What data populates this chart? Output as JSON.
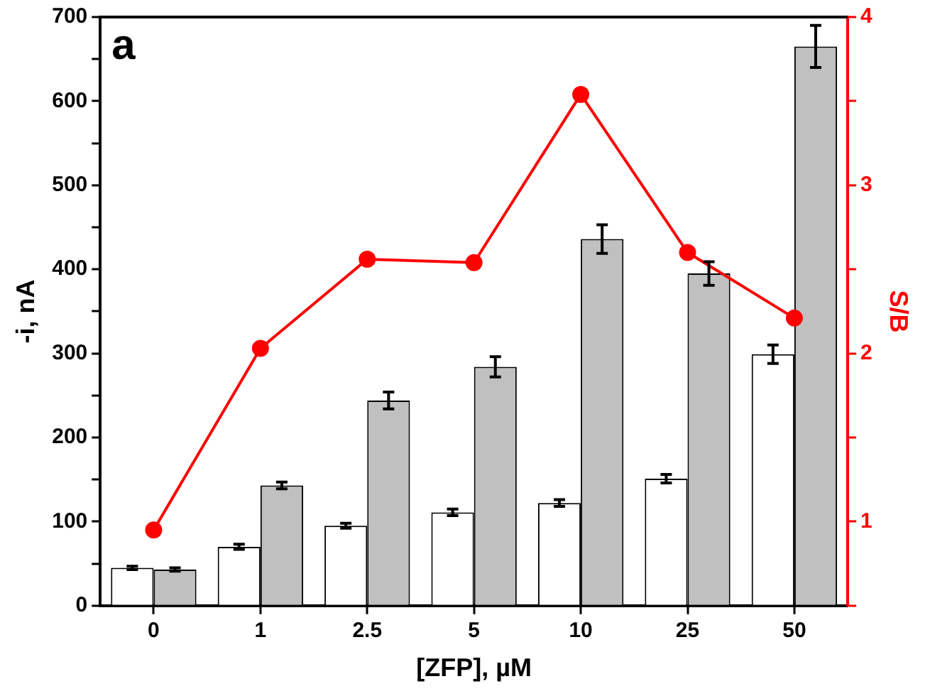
{
  "chart_data": {
    "type": "bar",
    "annotations": [
      "a"
    ],
    "xlabel": "[ZFP], µM",
    "ylabel": "-i, nA",
    "y2label": "S/B",
    "categories": [
      "0",
      "1",
      "2.5",
      "5",
      "10",
      "25",
      "50"
    ],
    "series": [
      {
        "color": "#ffffff",
        "values": [
          45,
          70,
          95,
          111,
          122,
          151,
          299
        ],
        "errors": [
          2,
          3,
          3,
          4,
          4,
          5,
          11
        ]
      },
      {
        "color": "#c0c0c0",
        "values": [
          43,
          143,
          244,
          284,
          436,
          395,
          665
        ],
        "errors": [
          2,
          4,
          10,
          12,
          17,
          14,
          25
        ]
      },
      {
        "type": "line",
        "axis": "y2",
        "color": "#ff0000",
        "marker": "circle",
        "values": [
          0.95,
          2.03,
          2.56,
          2.54,
          3.54,
          2.6,
          2.21
        ]
      }
    ],
    "ylim": [
      0,
      700
    ],
    "yticks": [
      0,
      {
        "value": 50,
        "label": null
      },
      100,
      {
        "value": 150,
        "label": null
      },
      200,
      {
        "value": 250,
        "label": null
      },
      300,
      {
        "value": 350,
        "label": null
      },
      400,
      {
        "value": 450,
        "label": null
      },
      500,
      {
        "value": 550,
        "label": null
      },
      600,
      {
        "value": 650,
        "label": null
      },
      700
    ],
    "y2lim": [
      0.5,
      4
    ],
    "y2ticks": [
      {
        "value": 0.5,
        "label": null
      },
      1,
      {
        "value": 1.5,
        "label": null
      },
      2,
      {
        "value": 2.5,
        "label": null
      },
      3,
      {
        "value": 3.5,
        "label": null
      },
      4
    ],
    "grid": false,
    "legend": false
  }
}
